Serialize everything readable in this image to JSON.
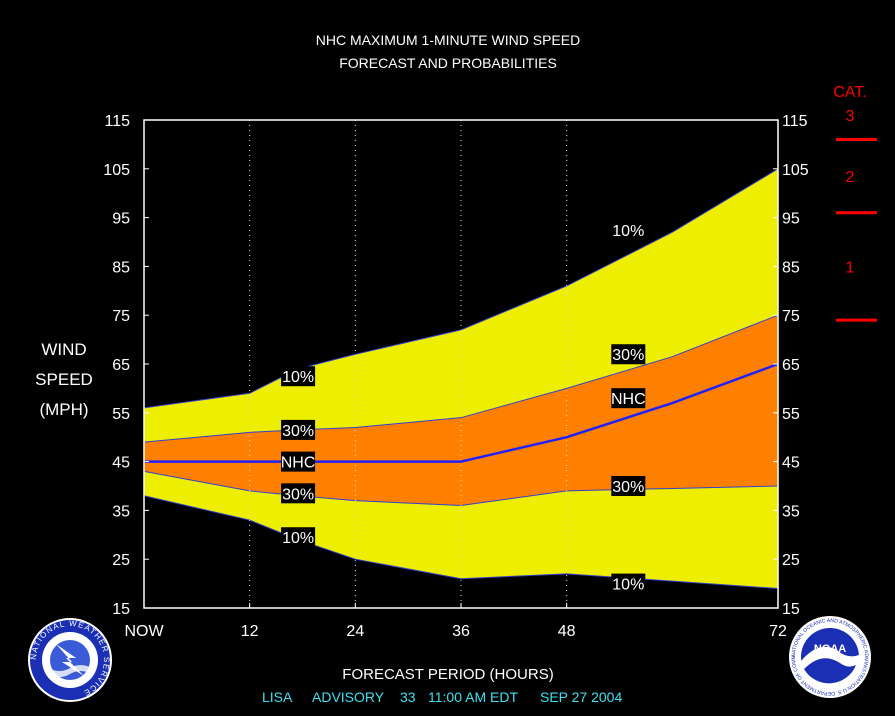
{
  "chart_data": {
    "type": "area",
    "title": "NHC MAXIMUM 1-MINUTE WIND SPEED",
    "subtitle": "FORECAST AND PROBABILITIES",
    "xlabel": "FORECAST PERIOD (HOURS)",
    "ylabel": [
      "WIND",
      "SPEED",
      "(MPH)"
    ],
    "x_ticks": [
      {
        "x": 0,
        "label": "NOW"
      },
      {
        "x": 12,
        "label": "12"
      },
      {
        "x": 24,
        "label": "24"
      },
      {
        "x": 36,
        "label": "36"
      },
      {
        "x": 48,
        "label": "48"
      },
      {
        "x": 72,
        "label": "72"
      }
    ],
    "y_ticks": [
      15,
      25,
      35,
      45,
      55,
      65,
      75,
      85,
      95,
      105,
      115
    ],
    "xlim": [
      0,
      72
    ],
    "ylim": [
      15,
      115
    ],
    "grid": "vertical dotted at 12, 24, 36, 48",
    "series": [
      {
        "name": "10%",
        "color": "#eeee00",
        "x": [
          0,
          12,
          17.5,
          24,
          36,
          48,
          60,
          72
        ],
        "upper": [
          56,
          59,
          64,
          67,
          72,
          81,
          92,
          105
        ],
        "lower": [
          38,
          33,
          29,
          25,
          21,
          22,
          20.5,
          19
        ]
      },
      {
        "name": "30%",
        "color": "#ff8000",
        "x": [
          0,
          12,
          17.5,
          24,
          36,
          48,
          60,
          72
        ],
        "upper": [
          49,
          51,
          51.5,
          52,
          54,
          60,
          66.5,
          75
        ],
        "lower": [
          43,
          39,
          38,
          37,
          36,
          39,
          39.5,
          40
        ]
      },
      {
        "name": "NHC",
        "color": "#2020ff",
        "x": [
          0,
          12,
          24,
          36,
          48,
          60,
          72
        ],
        "values": [
          45,
          45,
          45,
          45,
          50,
          57,
          65
        ]
      }
    ],
    "annotations": [
      {
        "text": "10%",
        "x": 17.5,
        "y": 62.5
      },
      {
        "text": "30%",
        "x": 17.5,
        "y": 51.5
      },
      {
        "text": "NHC",
        "x": 17.5,
        "y": 45
      },
      {
        "text": "30%",
        "x": 17.5,
        "y": 38.5
      },
      {
        "text": "10%",
        "x": 17.5,
        "y": 29.5
      },
      {
        "text": "10%",
        "x": 55,
        "y": 92.5
      },
      {
        "text": "30%",
        "x": 55,
        "y": 67
      },
      {
        "text": "NHC",
        "x": 55,
        "y": 58
      },
      {
        "text": "30%",
        "x": 55,
        "y": 40
      },
      {
        "text": "10%",
        "x": 55,
        "y": 20
      }
    ],
    "category_scale": {
      "title": "CAT.",
      "color": "#ff0000",
      "thresholds": [
        74,
        96,
        111
      ],
      "labels": [
        {
          "text": "1",
          "y": 85
        },
        {
          "text": "2",
          "y": 103.5
        },
        {
          "text": "3",
          "y": 116
        }
      ]
    }
  },
  "footer": {
    "storm": "LISA",
    "advisory": "ADVISORY",
    "number": "33",
    "time": "11:00 AM EDT",
    "date": "SEP 27 2004"
  },
  "logos": {
    "left": {
      "icon": "nws-logo-icon",
      "text": "NATIONAL WEATHER SERVICE"
    },
    "right": {
      "icon": "noaa-logo-icon",
      "text": "NOAA",
      "ring_text": "NATIONAL OCEANIC AND ATMOSPHERIC ADMINISTRATION U.S. DEPARTMENT OF COMMERCE"
    }
  }
}
